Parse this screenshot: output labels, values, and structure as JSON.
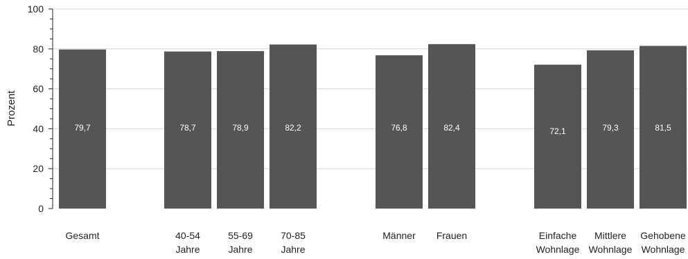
{
  "chart_data": {
    "type": "bar",
    "title": "",
    "xlabel": "",
    "ylabel": "Prozent",
    "ylim": [
      0,
      100
    ],
    "yticks": [
      0,
      20,
      40,
      60,
      80,
      100
    ],
    "minor_tick_step": 5,
    "grid": true,
    "bar_color": "#555555",
    "value_label_color": "#ffffff",
    "groups": [
      {
        "bars": [
          {
            "label": [
              "Gesamt"
            ],
            "value_label": "79,7",
            "value": 79.7
          }
        ]
      },
      {
        "bars": [
          {
            "label": [
              "40-54",
              "Jahre"
            ],
            "value_label": "78,7",
            "value": 78.7
          },
          {
            "label": [
              "55-69",
              "Jahre"
            ],
            "value_label": "78,9",
            "value": 78.9
          },
          {
            "label": [
              "70-85",
              "Jahre"
            ],
            "value_label": "82,2",
            "value": 82.2
          }
        ]
      },
      {
        "bars": [
          {
            "label": [
              "Männer"
            ],
            "value_label": "76,8",
            "value": 76.8
          },
          {
            "label": [
              "Frauen"
            ],
            "value_label": "82,4",
            "value": 82.4
          }
        ]
      },
      {
        "bars": [
          {
            "label": [
              "Einfache",
              "Wohnlage"
            ],
            "value_label": "72,1",
            "value": 72.1
          },
          {
            "label": [
              "Mittlere",
              "Wohnlage"
            ],
            "value_label": "79,3",
            "value": 79.3
          },
          {
            "label": [
              "Gehobene",
              "Wohnlage"
            ],
            "value_label": "81,5",
            "value": 81.5
          }
        ]
      }
    ]
  }
}
